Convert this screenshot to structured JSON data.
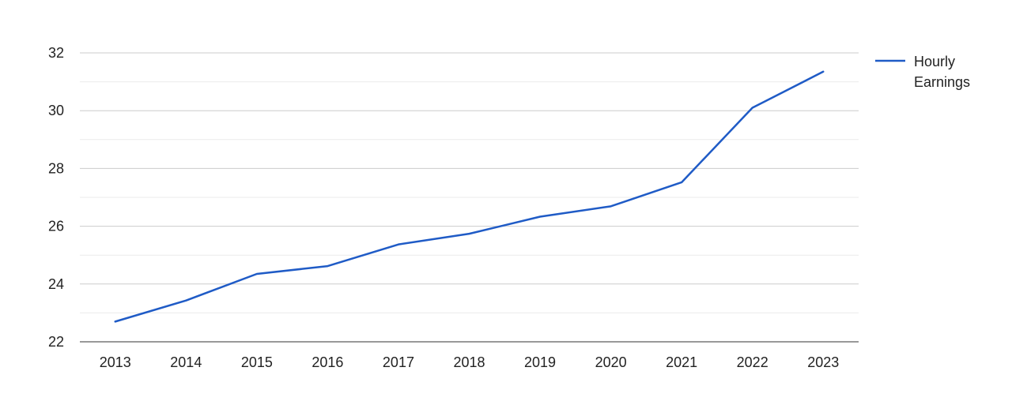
{
  "chart_data": {
    "type": "line",
    "title": "",
    "xlabel": "",
    "ylabel": "",
    "x": [
      "2013",
      "2014",
      "2015",
      "2016",
      "2017",
      "2018",
      "2019",
      "2020",
      "2021",
      "2022",
      "2023"
    ],
    "series": [
      {
        "name": "Hourly Earnings",
        "values": [
          22.7,
          23.43,
          24.35,
          24.62,
          25.37,
          25.74,
          26.33,
          26.69,
          27.52,
          30.1,
          31.35
        ]
      }
    ],
    "ylim": [
      22,
      32
    ],
    "yticks": [
      22,
      24,
      26,
      28,
      30,
      32
    ],
    "minor_gridlines": true,
    "grid": true,
    "legend": {
      "position": "right",
      "lines": [
        "Hourly",
        "Earnings"
      ]
    },
    "colors": {
      "line": "#1f5bc6",
      "major_grid": "#cccccc",
      "minor_grid": "#ebebeb",
      "axis": "#333333"
    }
  }
}
